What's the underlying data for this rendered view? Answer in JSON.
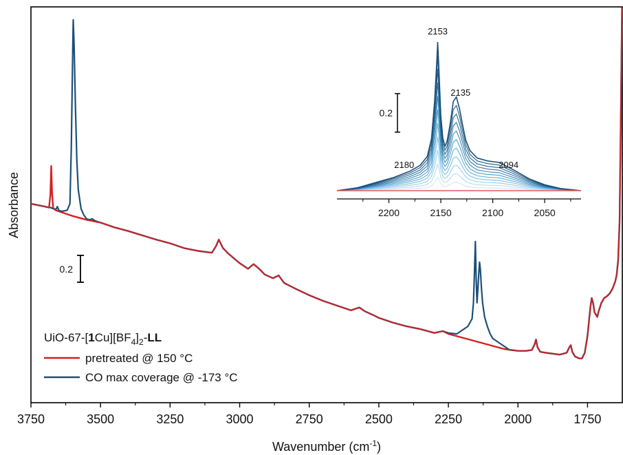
{
  "chart_data": {
    "type": "line",
    "xlabel_main": "Wavenumber (cm",
    "xlabel_sup": "-1",
    "xlabel_end": ")",
    "ylabel": "Absorbance",
    "xlim": [
      3750,
      1625
    ],
    "x_ticks": [
      "3750",
      "3500",
      "3250",
      "3000",
      "2750",
      "2500",
      "2250",
      "2000",
      "1750"
    ],
    "scale_bar_label": "0.2",
    "legend_title": {
      "p1": "UiO-67-[",
      "p2": "1",
      "p3": "Cu][BF",
      "p4": "4",
      "p5": "]",
      "p6": "2",
      "p7": "-",
      "p8": "LL"
    },
    "series": [
      {
        "name": "pretreated @ 150 °C",
        "color": "#d62020",
        "x": [
          3750,
          3700,
          3685,
          3680,
          3677,
          3674,
          3670,
          3660,
          3650,
          3620,
          3600,
          3550,
          3500,
          3450,
          3400,
          3300,
          3250,
          3200,
          3150,
          3100,
          3085,
          3075,
          3060,
          3050,
          3040,
          3020,
          3000,
          2970,
          2950,
          2930,
          2910,
          2880,
          2860,
          2850,
          2840,
          2800,
          2750,
          2700,
          2650,
          2600,
          2570,
          2550,
          2520,
          2500,
          2450,
          2400,
          2350,
          2300,
          2270,
          2250,
          2200,
          2150,
          2100,
          2050,
          2000,
          1970,
          1950,
          1940,
          1935,
          1930,
          1920,
          1900,
          1850,
          1825,
          1815,
          1810,
          1805,
          1795,
          1780,
          1770,
          1760,
          1750,
          1740,
          1735,
          1730,
          1725,
          1715,
          1710,
          1700,
          1690,
          1680,
          1670,
          1660,
          1650,
          1645,
          1640,
          1635,
          1630,
          1626
        ],
        "y": [
          0.0,
          -0.03,
          -0.04,
          0.1,
          0.4,
          0.1,
          -0.05,
          -0.07,
          -0.08,
          -0.11,
          -0.13,
          -0.17,
          -0.2,
          -0.25,
          -0.29,
          -0.38,
          -0.42,
          -0.47,
          -0.5,
          -0.52,
          -0.45,
          -0.38,
          -0.47,
          -0.5,
          -0.53,
          -0.58,
          -0.63,
          -0.69,
          -0.64,
          -0.69,
          -0.75,
          -0.79,
          -0.76,
          -0.8,
          -0.84,
          -0.9,
          -0.97,
          -1.03,
          -1.08,
          -1.13,
          -1.1,
          -1.14,
          -1.18,
          -1.21,
          -1.26,
          -1.3,
          -1.33,
          -1.37,
          -1.35,
          -1.38,
          -1.42,
          -1.46,
          -1.5,
          -1.54,
          -1.56,
          -1.56,
          -1.55,
          -1.49,
          -1.44,
          -1.52,
          -1.57,
          -1.58,
          -1.6,
          -1.58,
          -1.52,
          -1.5,
          -1.57,
          -1.62,
          -1.64,
          -1.64,
          -1.58,
          -1.4,
          -1.1,
          -1.0,
          -1.05,
          -1.15,
          -1.2,
          -1.14,
          -1.05,
          -1.0,
          -0.98,
          -0.95,
          -0.9,
          -0.82,
          -0.75,
          -0.6,
          -0.2,
          1.0,
          2.15
        ]
      },
      {
        "name": "CO max coverage @ -173 °C",
        "color": "#1c4f78",
        "x": [
          3750,
          3700,
          3685,
          3680,
          3677,
          3674,
          3670,
          3660,
          3655,
          3650,
          3640,
          3620,
          3610,
          3605,
          3600,
          3598,
          3595,
          3590,
          3585,
          3580,
          3570,
          3560,
          3550,
          3540,
          3530,
          3520,
          3500,
          3450,
          3400,
          3300,
          3250,
          3200,
          3150,
          3100,
          3085,
          3075,
          3060,
          3050,
          3040,
          3020,
          3000,
          2970,
          2950,
          2930,
          2910,
          2880,
          2860,
          2850,
          2840,
          2800,
          2750,
          2700,
          2650,
          2600,
          2570,
          2550,
          2520,
          2500,
          2450,
          2400,
          2350,
          2300,
          2270,
          2250,
          2220,
          2200,
          2180,
          2165,
          2160,
          2156,
          2153,
          2150,
          2147,
          2144,
          2140,
          2138,
          2135,
          2131,
          2127,
          2120,
          2110,
          2100,
          2090,
          2070,
          2050,
          2030,
          2000,
          1970,
          1950,
          1940,
          1935,
          1930,
          1920,
          1900,
          1850,
          1825,
          1815,
          1810,
          1805,
          1795,
          1780,
          1770,
          1760,
          1750,
          1740,
          1735,
          1730,
          1725,
          1715,
          1710,
          1700,
          1690,
          1680,
          1670,
          1660,
          1650,
          1645,
          1640,
          1635,
          1630,
          1626
        ],
        "y": [
          0.0,
          -0.03,
          -0.04,
          -0.04,
          -0.04,
          -0.05,
          -0.05,
          -0.06,
          -0.03,
          -0.07,
          -0.08,
          -0.07,
          0.0,
          0.6,
          1.6,
          1.95,
          1.7,
          1.0,
          0.45,
          0.15,
          -0.05,
          -0.12,
          -0.16,
          -0.17,
          -0.16,
          -0.18,
          -0.2,
          -0.25,
          -0.29,
          -0.38,
          -0.42,
          -0.47,
          -0.5,
          -0.52,
          -0.45,
          -0.38,
          -0.47,
          -0.5,
          -0.53,
          -0.58,
          -0.63,
          -0.69,
          -0.64,
          -0.69,
          -0.75,
          -0.79,
          -0.76,
          -0.8,
          -0.84,
          -0.9,
          -0.97,
          -1.03,
          -1.08,
          -1.13,
          -1.1,
          -1.14,
          -1.18,
          -1.21,
          -1.26,
          -1.3,
          -1.33,
          -1.37,
          -1.35,
          -1.37,
          -1.38,
          -1.34,
          -1.3,
          -1.22,
          -1.05,
          -0.7,
          -0.4,
          -0.8,
          -1.05,
          -0.9,
          -0.7,
          -0.62,
          -0.7,
          -0.9,
          -1.05,
          -1.2,
          -1.3,
          -1.38,
          -1.43,
          -1.47,
          -1.51,
          -1.55,
          -1.56,
          -1.56,
          -1.55,
          -1.49,
          -1.44,
          -1.52,
          -1.57,
          -1.58,
          -1.6,
          -1.58,
          -1.52,
          -1.5,
          -1.57,
          -1.62,
          -1.64,
          -1.64,
          -1.58,
          -1.4,
          -1.1,
          -1.0,
          -1.05,
          -1.15,
          -1.2,
          -1.14,
          -1.05,
          -1.0,
          -0.98,
          -0.95,
          -0.9,
          -0.82,
          -0.75,
          -0.6,
          -0.2,
          1.0,
          2.15
        ]
      }
    ],
    "inset": {
      "xlim": [
        2250,
        2015
      ],
      "x_ticks": [
        "2200",
        "2150",
        "2100",
        "2050"
      ],
      "scale_bar_label": "0.2",
      "peak_labels": [
        "2180",
        "2153",
        "2135",
        "2094"
      ],
      "peak_positions": [
        2180,
        2153,
        2135,
        2094
      ],
      "shape": {
        "x": [
          2250,
          2230,
          2210,
          2195,
          2180,
          2170,
          2163,
          2159,
          2156,
          2154,
          2153,
          2152,
          2150,
          2148,
          2146,
          2144,
          2141,
          2138,
          2135,
          2132,
          2129,
          2126,
          2122,
          2115,
          2105,
          2094,
          2080,
          2065,
          2050,
          2035,
          2015
        ],
        "y": [
          0.0,
          0.02,
          0.06,
          0.09,
          0.13,
          0.17,
          0.23,
          0.35,
          0.6,
          0.85,
          1.0,
          0.85,
          0.5,
          0.35,
          0.3,
          0.33,
          0.45,
          0.6,
          0.63,
          0.55,
          0.44,
          0.34,
          0.27,
          0.22,
          0.2,
          0.19,
          0.14,
          0.08,
          0.04,
          0.015,
          0.0
        ]
      },
      "max_abs": 0.62,
      "n_curves": 11,
      "palette": [
        "#cde9f6",
        "#b3ddf1",
        "#97cfea",
        "#7cc0e2",
        "#63b0d8",
        "#4e9ecb",
        "#3d8ab9",
        "#3077a5",
        "#256590",
        "#1e5680",
        "#1c4f78"
      ],
      "baseline_color": "#e35a5a"
    }
  }
}
